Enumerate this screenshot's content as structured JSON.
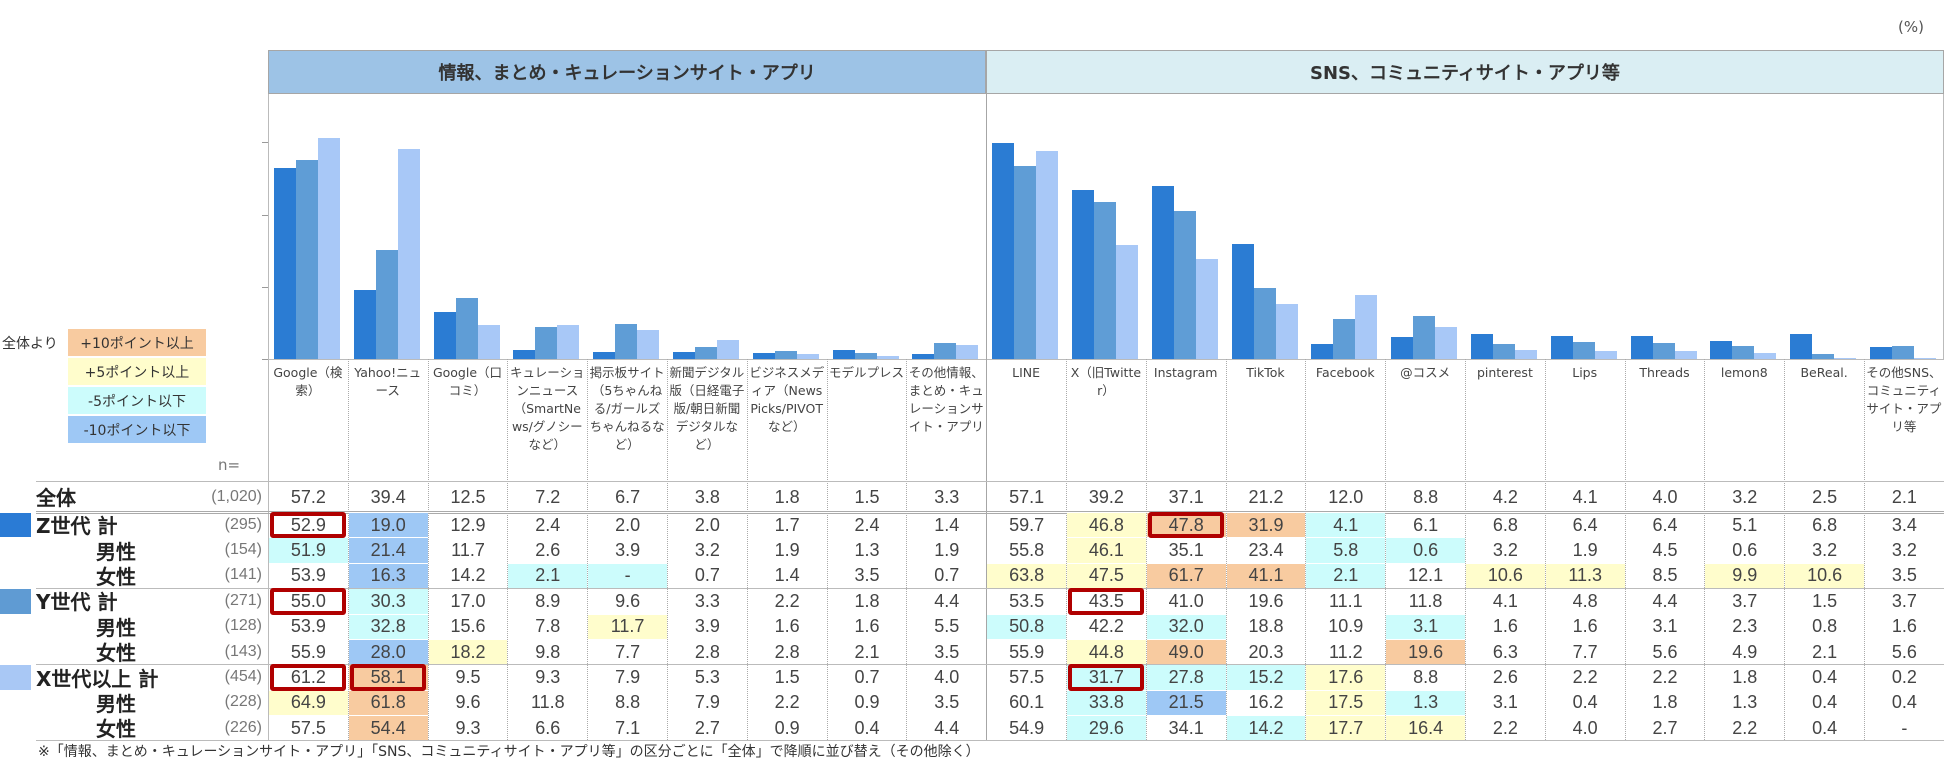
{
  "unit": "(%)",
  "groups": [
    {
      "title": "情報、まとめ・キュレーションサイト・アプリ",
      "color": "#9dc3e6",
      "span": 9
    },
    {
      "title": "SNS、コミュニティサイト・アプリ等",
      "color": "#daeef3",
      "span": 12
    }
  ],
  "columns": [
    "Google（検索）",
    "Yahoo!ニュース",
    "Google（口コミ）",
    "キュレーションニュース（SmartNews/グノシーなど）",
    "掲示板サイト（5ちゃんねる/ガールズちゃんねるなど）",
    "新聞デジタル版（日経電子版/朝日新聞デジタルなど）",
    "ビジネスメディア（NewsPicks/PIVOTなど）",
    "モデルプレス",
    "その他情報、まとめ・キュレーションサイト・アプリ",
    "LINE",
    "X（旧Twitter）",
    "Instagram",
    "TikTok",
    "Facebook",
    "@コスメ",
    "pinterest",
    "Lips",
    "Threads",
    "lemon8",
    "BeReal.",
    "その他SNS、コミュニティサイト・アプリ等"
  ],
  "legend": {
    "title": "全体より",
    "items": [
      {
        "code": "o",
        "label": "+10ポイント以上",
        "color": "#f8cba0"
      },
      {
        "code": "y",
        "label": "+5ポイント以上",
        "color": "#fffdcc"
      },
      {
        "code": "c",
        "label": "-5ポイント以下",
        "color": "#ccfcfc"
      },
      {
        "code": "b",
        "label": "-10ポイント以下",
        "color": "#9ec8f5"
      }
    ]
  },
  "n_label": "n=",
  "rows": [
    {
      "label": "全体",
      "n": "(1,020)",
      "kind": "total",
      "values": [
        "57.2",
        "39.4",
        "12.5",
        "7.2",
        "6.7",
        "3.8",
        "1.8",
        "1.5",
        "3.3",
        "57.1",
        "39.2",
        "37.1",
        "21.2",
        "12.0",
        "8.8",
        "4.2",
        "4.1",
        "4.0",
        "3.2",
        "2.5",
        "2.1"
      ],
      "hl": {},
      "boxed": []
    },
    {
      "label": "Z世代 計",
      "n": "(295)",
      "kind": "group",
      "marker": "#2a7bd5",
      "values": [
        "52.9",
        "19.0",
        "12.9",
        "2.4",
        "2.0",
        "2.0",
        "1.7",
        "2.4",
        "1.4",
        "59.7",
        "46.8",
        "47.8",
        "31.9",
        "4.1",
        "6.1",
        "6.8",
        "6.4",
        "6.4",
        "5.1",
        "6.8",
        "3.4"
      ],
      "hl": {
        "1": "b",
        "10": "y",
        "11": "o",
        "12": "o",
        "13": "c"
      },
      "boxed": [
        0,
        11
      ]
    },
    {
      "label": "男性",
      "n": "(154)",
      "kind": "sub",
      "values": [
        "51.9",
        "21.4",
        "11.7",
        "2.6",
        "3.9",
        "3.2",
        "1.9",
        "1.3",
        "1.9",
        "55.8",
        "46.1",
        "35.1",
        "23.4",
        "5.8",
        "0.6",
        "3.2",
        "1.9",
        "4.5",
        "0.6",
        "3.2",
        "3.2"
      ],
      "hl": {
        "0": "c",
        "1": "b",
        "10": "y",
        "13": "c",
        "14": "c"
      },
      "boxed": []
    },
    {
      "label": "女性",
      "n": "(141)",
      "kind": "sub",
      "values": [
        "53.9",
        "16.3",
        "14.2",
        "2.1",
        "-",
        "0.7",
        "1.4",
        "3.5",
        "0.7",
        "63.8",
        "47.5",
        "61.7",
        "41.1",
        "2.1",
        "12.1",
        "10.6",
        "11.3",
        "8.5",
        "9.9",
        "10.6",
        "3.5"
      ],
      "hl": {
        "1": "b",
        "3": "c",
        "4": "c",
        "9": "y",
        "10": "y",
        "11": "o",
        "12": "o",
        "13": "c",
        "15": "y",
        "16": "y",
        "18": "y",
        "19": "y"
      },
      "boxed": []
    },
    {
      "label": "Y世代 計",
      "n": "(271)",
      "kind": "group",
      "marker": "#5f9bd3",
      "values": [
        "55.0",
        "30.3",
        "17.0",
        "8.9",
        "9.6",
        "3.3",
        "2.2",
        "1.8",
        "4.4",
        "53.5",
        "43.5",
        "41.0",
        "19.6",
        "11.1",
        "11.8",
        "4.1",
        "4.8",
        "4.4",
        "3.7",
        "1.5",
        "3.7"
      ],
      "hl": {
        "1": "c"
      },
      "boxed": [
        0,
        10
      ]
    },
    {
      "label": "男性",
      "n": "(128)",
      "kind": "sub",
      "values": [
        "53.9",
        "32.8",
        "15.6",
        "7.8",
        "11.7",
        "3.9",
        "1.6",
        "1.6",
        "5.5",
        "50.8",
        "42.2",
        "32.0",
        "18.8",
        "10.9",
        "3.1",
        "1.6",
        "1.6",
        "3.1",
        "2.3",
        "0.8",
        "1.6"
      ],
      "hl": {
        "1": "c",
        "4": "y",
        "9": "c",
        "11": "c",
        "14": "c"
      },
      "boxed": []
    },
    {
      "label": "女性",
      "n": "(143)",
      "kind": "sub",
      "values": [
        "55.9",
        "28.0",
        "18.2",
        "9.8",
        "7.7",
        "2.8",
        "2.8",
        "2.1",
        "3.5",
        "55.9",
        "44.8",
        "49.0",
        "20.3",
        "11.2",
        "19.6",
        "6.3",
        "7.7",
        "5.6",
        "4.9",
        "2.1",
        "5.6"
      ],
      "hl": {
        "1": "b",
        "2": "y",
        "10": "y",
        "11": "o",
        "14": "o"
      },
      "boxed": []
    },
    {
      "label": "X世代以上 計",
      "n": "(454)",
      "kind": "group",
      "marker": "#a9c8f5",
      "values": [
        "61.2",
        "58.1",
        "9.5",
        "9.3",
        "7.9",
        "5.3",
        "1.5",
        "0.7",
        "4.0",
        "57.5",
        "31.7",
        "27.8",
        "15.2",
        "17.6",
        "8.8",
        "2.6",
        "2.2",
        "2.2",
        "1.8",
        "0.4",
        "0.2"
      ],
      "hl": {
        "1": "o",
        "10": "c",
        "11": "c",
        "12": "c",
        "13": "y"
      },
      "boxed": [
        0,
        1,
        10
      ]
    },
    {
      "label": "男性",
      "n": "(228)",
      "kind": "sub",
      "values": [
        "64.9",
        "61.8",
        "9.6",
        "11.8",
        "8.8",
        "7.9",
        "2.2",
        "0.9",
        "3.5",
        "60.1",
        "33.8",
        "21.5",
        "16.2",
        "17.5",
        "1.3",
        "3.1",
        "0.4",
        "1.8",
        "1.3",
        "0.4",
        "0.4"
      ],
      "hl": {
        "0": "y",
        "1": "o",
        "10": "c",
        "11": "b",
        "13": "y",
        "14": "c"
      },
      "boxed": []
    },
    {
      "label": "女性",
      "n": "(226)",
      "kind": "sub",
      "values": [
        "57.5",
        "54.4",
        "9.3",
        "6.6",
        "7.1",
        "2.7",
        "0.9",
        "0.4",
        "4.4",
        "54.9",
        "29.6",
        "34.1",
        "14.2",
        "17.7",
        "16.4",
        "2.2",
        "4.0",
        "2.7",
        "2.2",
        "0.4",
        "-"
      ],
      "hl": {
        "1": "o",
        "10": "c",
        "12": "c",
        "13": "y",
        "14": "y"
      },
      "boxed": []
    }
  ],
  "footnote": "※「情報、まとめ・キュレーションサイト・アプリ」「SNS、コミュニティサイト・アプリ等」の区分ごとに「全体」で降順に並び替え（その他除く）",
  "chart_data": {
    "type": "bar",
    "categories": [
      "Google（検索）",
      "Yahoo!ニュース",
      "Google（口コミ）",
      "キュレーションニュース",
      "掲示板サイト",
      "新聞デジタル版",
      "ビジネスメディア",
      "モデルプレス",
      "その他情報、まとめ・キュレーションサイト・アプリ",
      "LINE",
      "X（旧Twitter）",
      "Instagram",
      "TikTok",
      "Facebook",
      "@コスメ",
      "pinterest",
      "Lips",
      "Threads",
      "lemon8",
      "BeReal.",
      "その他SNS、コミュニティサイト・アプリ等"
    ],
    "series": [
      {
        "name": "Z世代 計",
        "color": "#2b7cd3",
        "values": [
          52.9,
          19.0,
          12.9,
          2.4,
          2.0,
          2.0,
          1.7,
          2.4,
          1.4,
          59.7,
          46.8,
          47.8,
          31.9,
          4.1,
          6.1,
          6.8,
          6.4,
          6.4,
          5.1,
          6.8,
          3.4
        ]
      },
      {
        "name": "Y世代 計",
        "color": "#5f9dd6",
        "values": [
          55.0,
          30.3,
          17.0,
          8.9,
          9.6,
          3.3,
          2.2,
          1.8,
          4.4,
          53.5,
          43.5,
          41.0,
          19.6,
          11.1,
          11.8,
          4.1,
          4.8,
          4.4,
          3.7,
          1.5,
          3.7
        ]
      },
      {
        "name": "X世代以上 計",
        "color": "#a8c8f7",
        "values": [
          61.2,
          58.1,
          9.5,
          9.3,
          7.9,
          5.3,
          1.5,
          0.7,
          4.0,
          57.5,
          31.7,
          27.8,
          15.2,
          17.6,
          8.8,
          2.6,
          2.2,
          2.2,
          1.8,
          0.4,
          0.2
        ]
      }
    ],
    "ylabel": "%",
    "ylim": [
      0,
      73
    ],
    "yticks": [
      0,
      20,
      40,
      60
    ],
    "grid": false
  }
}
